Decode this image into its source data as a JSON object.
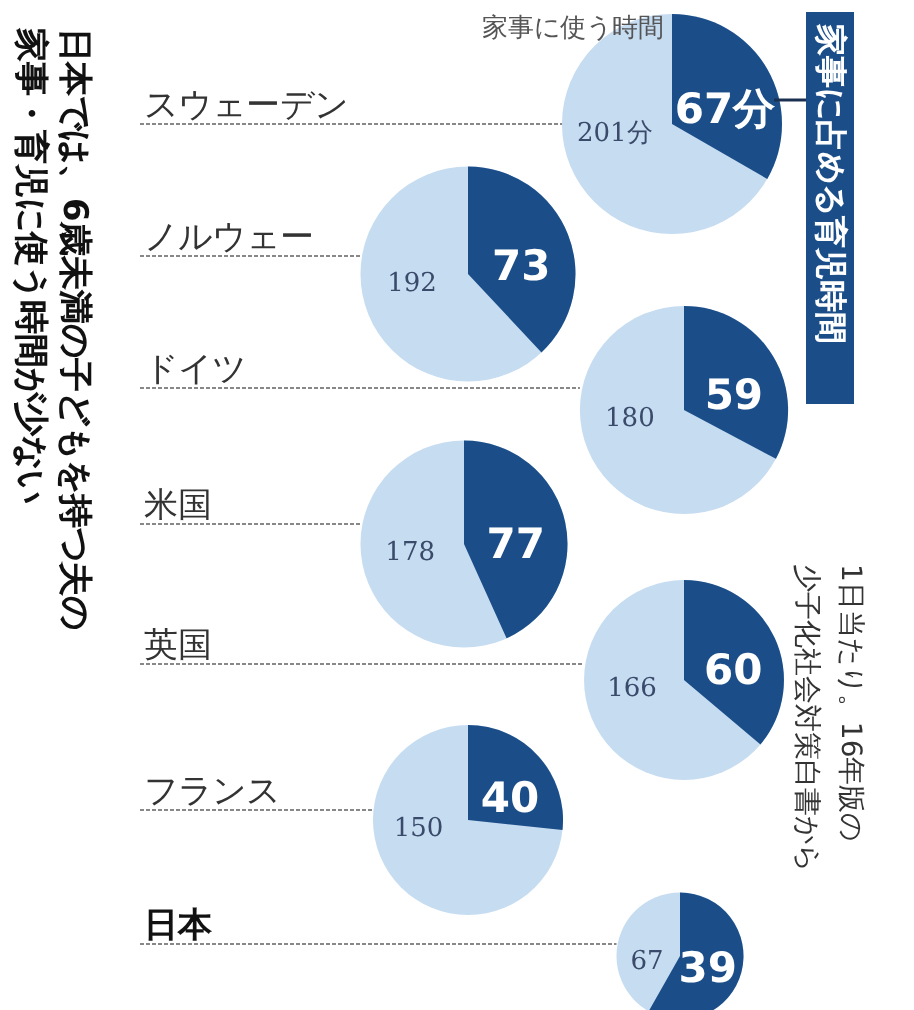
{
  "chart_data": {
    "type": "other",
    "title": "日本では、6歳未満の子どもを持つ夫の家事・育児に使う時間が少ない",
    "categories": [
      "スウェーデン",
      "ノルウェー",
      "ドイツ",
      "米国",
      "英国",
      "フランス",
      "日本"
    ],
    "series": [
      {
        "name": "家事に使う時間",
        "color": "#c6dcf1",
        "values": [
          201,
          192,
          180,
          178,
          166,
          150,
          67
        ],
        "value_labels": [
          "201分",
          "192",
          "180",
          "178",
          "166",
          "150",
          "67"
        ]
      },
      {
        "name": "家事に占める育児時間",
        "color": "#1b4e89",
        "values": [
          67,
          73,
          59,
          77,
          60,
          40,
          39
        ],
        "value_labels": [
          "67分",
          "73",
          "59",
          "77",
          "60",
          "40",
          "39"
        ]
      }
    ],
    "annotations": [
      "1日当たり。16年版の少子化社会対策白書から"
    ]
  }
}
